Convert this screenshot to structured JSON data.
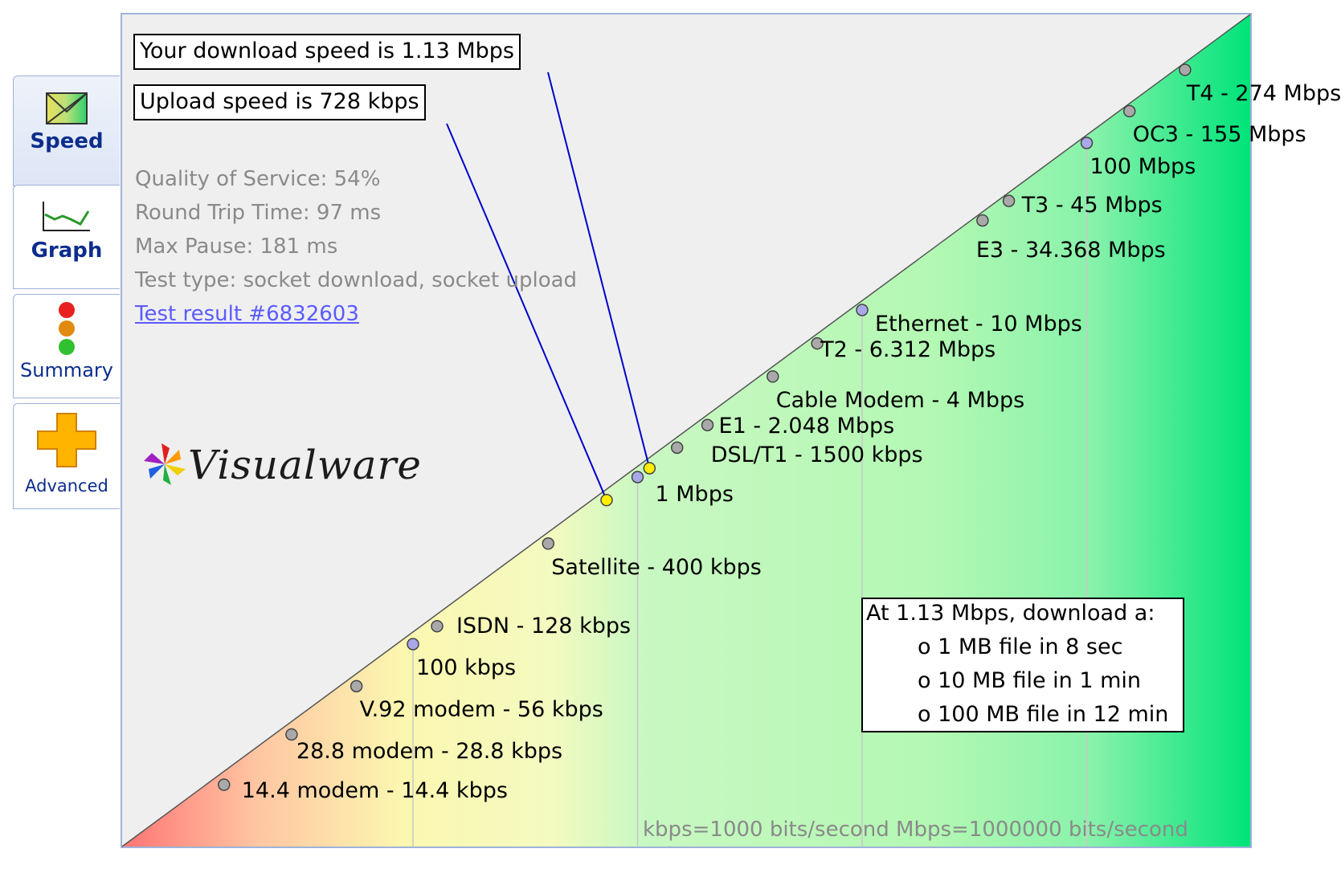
{
  "tabs": [
    {
      "label": "Speed",
      "icon": "envelope-speed-icon",
      "active": true
    },
    {
      "label": "Graph",
      "icon": "line-graph-icon",
      "active": false
    },
    {
      "label": "Summary",
      "icon": "traffic-light-icon",
      "active": false
    },
    {
      "label": "Advanced",
      "icon": "plus-icon",
      "active": false
    }
  ],
  "results": {
    "download": "Your download speed is 1.13 Mbps",
    "upload": "Upload speed is 728 kbps",
    "quality": "Quality of Service: 54%",
    "rtt": "Round Trip Time: 97 ms",
    "max_pause": "Max Pause: 181 ms",
    "test_type": "Test type: socket download, socket upload",
    "test_link": "Test result #6832603"
  },
  "brand": {
    "name": "Visualware"
  },
  "download_box": {
    "title": "At 1.13 Mbps, download a:",
    "lines": [
      "o 1 MB file in 8 sec",
      "o 10 MB file in 1 min",
      "o 100 MB file in 12 min"
    ]
  },
  "footnote": "kbps=1000 bits/second  Mbps=1000000 bits/second",
  "chart_data": {
    "type": "scatter",
    "scale": "log",
    "unit": "kbps",
    "markers": [
      {
        "label": "14.4 modem - 14.4 kbps",
        "kbps": 14.4,
        "kind": "reference"
      },
      {
        "label": "28.8 modem - 28.8 kbps",
        "kbps": 28.8,
        "kind": "reference"
      },
      {
        "label": "V.92 modem - 56 kbps",
        "kbps": 56,
        "kind": "reference"
      },
      {
        "label": "100 kbps",
        "kbps": 100,
        "kind": "gridline"
      },
      {
        "label": "ISDN - 128 kbps",
        "kbps": 128,
        "kind": "reference"
      },
      {
        "label": "Satellite - 400 kbps",
        "kbps": 400,
        "kind": "reference"
      },
      {
        "label": "1 Mbps",
        "kbps": 1000,
        "kind": "gridline"
      },
      {
        "label": "DSL/T1 - 1500 kbps",
        "kbps": 1500,
        "kind": "reference"
      },
      {
        "label": "E1 - 2.048 Mbps",
        "kbps": 2048,
        "kind": "reference"
      },
      {
        "label": "Cable Modem - 4 Mbps",
        "kbps": 4000,
        "kind": "reference"
      },
      {
        "label": "T2 - 6.312 Mbps",
        "kbps": 6312,
        "kind": "reference"
      },
      {
        "label": "Ethernet - 10 Mbps",
        "kbps": 10000,
        "kind": "gridline"
      },
      {
        "label": "E3 - 34.368 Mbps",
        "kbps": 34368,
        "kind": "reference"
      },
      {
        "label": "T3 - 45 Mbps",
        "kbps": 45000,
        "kind": "reference"
      },
      {
        "label": "100 Mbps",
        "kbps": 100000,
        "kind": "gridline"
      },
      {
        "label": "OC3 - 155 Mbps",
        "kbps": 155000,
        "kind": "reference"
      },
      {
        "label": "T4 - 274 Mbps",
        "kbps": 274000,
        "kind": "reference"
      }
    ],
    "measured": [
      {
        "name": "download",
        "kbps": 1130
      },
      {
        "name": "upload",
        "kbps": 728
      }
    ],
    "colors": {
      "gray": "#a9a9a9",
      "blue": "#a8a8e8",
      "yellow": "#ffee00",
      "line": "#0000cc"
    }
  }
}
